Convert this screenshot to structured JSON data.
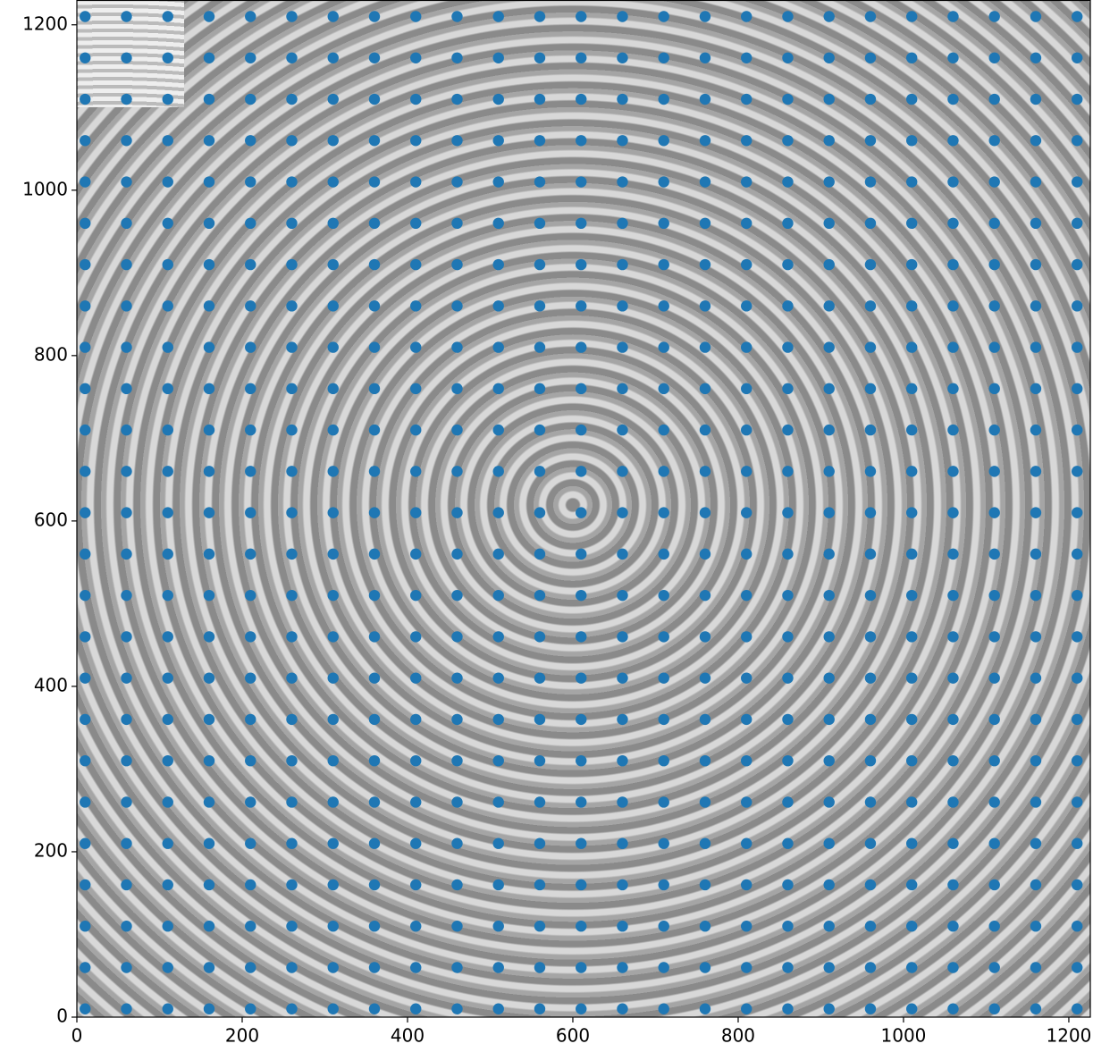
{
  "chart_data": {
    "type": "scatter",
    "color": "#1f77b4",
    "xlim": [
      0,
      1226
    ],
    "ylim": [
      0,
      1230
    ],
    "xticks": [
      0,
      200,
      400,
      600,
      800,
      1000,
      1200
    ],
    "yticks": [
      0,
      200,
      400,
      600,
      800,
      1000,
      1200
    ],
    "x": [
      10,
      60,
      110,
      160,
      210,
      260,
      310,
      360,
      410,
      460,
      510,
      560,
      610,
      660,
      710,
      760,
      810,
      860,
      910,
      960,
      1010,
      1060,
      1110,
      1160,
      1210,
      10,
      60,
      110,
      160,
      210,
      260,
      310,
      360,
      410,
      460,
      510,
      560,
      610,
      660,
      710,
      760,
      810,
      860,
      910,
      960,
      1010,
      1060,
      1110,
      1160,
      1210,
      10,
      60,
      110,
      160,
      210,
      260,
      310,
      360,
      410,
      460,
      510,
      560,
      610,
      660,
      710,
      760,
      810,
      860,
      910,
      960,
      1010,
      1060,
      1110,
      1160,
      1210,
      10,
      60,
      110,
      160,
      210,
      260,
      310,
      360,
      410,
      460,
      510,
      560,
      610,
      660,
      710,
      760,
      810,
      860,
      910,
      960,
      1010,
      1060,
      1110,
      1160,
      1210,
      10,
      60,
      110,
      160,
      210,
      260,
      310,
      360,
      410,
      460,
      510,
      560,
      610,
      660,
      710,
      760,
      810,
      860,
      910,
      960,
      1010,
      1060,
      1110,
      1160,
      1210,
      10,
      60,
      110,
      160,
      210,
      260,
      310,
      360,
      410,
      460,
      510,
      560,
      610,
      660,
      710,
      760,
      810,
      860,
      910,
      960,
      1010,
      1060,
      1110,
      1160,
      1210,
      10,
      60,
      110,
      160,
      210,
      260,
      310,
      360,
      410,
      460,
      510,
      560,
      610,
      660,
      710,
      760,
      810,
      860,
      910,
      960,
      1010,
      1060,
      1110,
      1160,
      1210,
      10,
      60,
      110,
      160,
      210,
      260,
      310,
      360,
      410,
      460,
      510,
      560,
      610,
      660,
      710,
      760,
      810,
      860,
      910,
      960,
      1010,
      1060,
      1110,
      1160,
      1210,
      10,
      60,
      110,
      160,
      210,
      260,
      310,
      360,
      410,
      460,
      510,
      560,
      610,
      660,
      710,
      760,
      810,
      860,
      910,
      960,
      1010,
      1060,
      1110,
      1160,
      1210,
      10,
      60,
      110,
      160,
      210,
      260,
      310,
      360,
      410,
      460,
      510,
      560,
      610,
      660,
      710,
      760,
      810,
      860,
      910,
      960,
      1010,
      1060,
      1110,
      1160,
      1210,
      10,
      60,
      110,
      160,
      210,
      260,
      310,
      360,
      410,
      460,
      510,
      560,
      610,
      660,
      710,
      760,
      810,
      860,
      910,
      960,
      1010,
      1060,
      1110,
      1160,
      1210,
      10,
      60,
      110,
      160,
      210,
      260,
      310,
      360,
      410,
      460,
      510,
      560,
      610,
      660,
      710,
      760,
      810,
      860,
      910,
      960,
      1010,
      1060,
      1110,
      1160,
      1210,
      10,
      60,
      110,
      160,
      210,
      260,
      310,
      360,
      410,
      460,
      510,
      560,
      610,
      660,
      710,
      760,
      810,
      860,
      910,
      960,
      1010,
      1060,
      1110,
      1160,
      1210,
      10,
      60,
      110,
      160,
      210,
      260,
      310,
      360,
      410,
      460,
      510,
      560,
      610,
      660,
      710,
      760,
      810,
      860,
      910,
      960,
      1010,
      1060,
      1110,
      1160,
      1210,
      10,
      60,
      110,
      160,
      210,
      260,
      310,
      360,
      410,
      460,
      510,
      560,
      610,
      660,
      710,
      760,
      810,
      860,
      910,
      960,
      1010,
      1060,
      1110,
      1160,
      1210,
      10,
      60,
      110,
      160,
      210,
      260,
      310,
      360,
      410,
      460,
      510,
      560,
      610,
      660,
      710,
      760,
      810,
      860,
      910,
      960,
      1010,
      1060,
      1110,
      1160,
      1210,
      10,
      60,
      110,
      160,
      210,
      260,
      310,
      360,
      410,
      460,
      510,
      560,
      610,
      660,
      710,
      760,
      810,
      860,
      910,
      960,
      1010,
      1060,
      1110,
      1160,
      1210,
      10,
      60,
      110,
      160,
      210,
      260,
      310,
      360,
      410,
      460,
      510,
      560,
      610,
      660,
      710,
      760,
      810,
      860,
      910,
      960,
      1010,
      1060,
      1110,
      1160,
      1210,
      10,
      60,
      110,
      160,
      210,
      260,
      310,
      360,
      410,
      460,
      510,
      560,
      610,
      660,
      710,
      760,
      810,
      860,
      910,
      960,
      1010,
      1060,
      1110,
      1160,
      1210,
      10,
      60,
      110,
      160,
      210,
      260,
      310,
      360,
      410,
      460,
      510,
      560,
      610,
      660,
      710,
      760,
      810,
      860,
      910,
      960,
      1010,
      1060,
      1110,
      1160,
      1210,
      10,
      60,
      110,
      160,
      210,
      260,
      310,
      360,
      410,
      460,
      510,
      560,
      610,
      660,
      710,
      760,
      810,
      860,
      910,
      960,
      1010,
      1060,
      1110,
      1160,
      1210,
      10,
      60,
      110,
      160,
      210,
      260,
      310,
      360,
      410,
      460,
      510,
      560,
      610,
      660,
      710,
      760,
      810,
      860,
      910,
      960,
      1010,
      1060,
      1110,
      1160,
      1210,
      10,
      60,
      110,
      160,
      210,
      260,
      310,
      360,
      410,
      460,
      510,
      560,
      610,
      660,
      710,
      760,
      810,
      860,
      910,
      960,
      1010,
      1060,
      1110,
      1160,
      1210,
      10,
      60,
      110,
      160,
      210,
      260,
      310,
      360,
      410,
      460,
      510,
      560,
      610,
      660,
      710,
      760,
      810,
      860,
      910,
      960,
      1010,
      1060,
      1110,
      1160,
      1210,
      10,
      60,
      110,
      160,
      210,
      260,
      310,
      360,
      410,
      460,
      510,
      560,
      610,
      660,
      710,
      760,
      810,
      860,
      910,
      960,
      1010,
      1060,
      1110,
      1160,
      1210
    ],
    "values": [
      10,
      10,
      10,
      10,
      10,
      10,
      10,
      10,
      10,
      10,
      10,
      10,
      10,
      10,
      10,
      10,
      10,
      10,
      10,
      10,
      10,
      10,
      10,
      10,
      10,
      60,
      60,
      60,
      60,
      60,
      60,
      60,
      60,
      60,
      60,
      60,
      60,
      60,
      60,
      60,
      60,
      60,
      60,
      60,
      60,
      60,
      60,
      60,
      60,
      60,
      110,
      110,
      110,
      110,
      110,
      110,
      110,
      110,
      110,
      110,
      110,
      110,
      110,
      110,
      110,
      110,
      110,
      110,
      110,
      110,
      110,
      110,
      110,
      110,
      110,
      160,
      160,
      160,
      160,
      160,
      160,
      160,
      160,
      160,
      160,
      160,
      160,
      160,
      160,
      160,
      160,
      160,
      160,
      160,
      160,
      160,
      160,
      160,
      160,
      160,
      210,
      210,
      210,
      210,
      210,
      210,
      210,
      210,
      210,
      210,
      210,
      210,
      210,
      210,
      210,
      210,
      210,
      210,
      210,
      210,
      210,
      210,
      210,
      210,
      210,
      260,
      260,
      260,
      260,
      260,
      260,
      260,
      260,
      260,
      260,
      260,
      260,
      260,
      260,
      260,
      260,
      260,
      260,
      260,
      260,
      260,
      260,
      260,
      260,
      260,
      310,
      310,
      310,
      310,
      310,
      310,
      310,
      310,
      310,
      310,
      310,
      310,
      310,
      310,
      310,
      310,
      310,
      310,
      310,
      310,
      310,
      310,
      310,
      310,
      310,
      360,
      360,
      360,
      360,
      360,
      360,
      360,
      360,
      360,
      360,
      360,
      360,
      360,
      360,
      360,
      360,
      360,
      360,
      360,
      360,
      360,
      360,
      360,
      360,
      360,
      410,
      410,
      410,
      410,
      410,
      410,
      410,
      410,
      410,
      410,
      410,
      410,
      410,
      410,
      410,
      410,
      410,
      410,
      410,
      410,
      410,
      410,
      410,
      410,
      410,
      460,
      460,
      460,
      460,
      460,
      460,
      460,
      460,
      460,
      460,
      460,
      460,
      460,
      460,
      460,
      460,
      460,
      460,
      460,
      460,
      460,
      460,
      460,
      460,
      460,
      510,
      510,
      510,
      510,
      510,
      510,
      510,
      510,
      510,
      510,
      510,
      510,
      510,
      510,
      510,
      510,
      510,
      510,
      510,
      510,
      510,
      510,
      510,
      510,
      510,
      560,
      560,
      560,
      560,
      560,
      560,
      560,
      560,
      560,
      560,
      560,
      560,
      560,
      560,
      560,
      560,
      560,
      560,
      560,
      560,
      560,
      560,
      560,
      560,
      560,
      610,
      610,
      610,
      610,
      610,
      610,
      610,
      610,
      610,
      610,
      610,
      610,
      610,
      610,
      610,
      610,
      610,
      610,
      610,
      610,
      610,
      610,
      610,
      610,
      610,
      660,
      660,
      660,
      660,
      660,
      660,
      660,
      660,
      660,
      660,
      660,
      660,
      660,
      660,
      660,
      660,
      660,
      660,
      660,
      660,
      660,
      660,
      660,
      660,
      660,
      710,
      710,
      710,
      710,
      710,
      710,
      710,
      710,
      710,
      710,
      710,
      710,
      710,
      710,
      710,
      710,
      710,
      710,
      710,
      710,
      710,
      710,
      710,
      710,
      710,
      760,
      760,
      760,
      760,
      760,
      760,
      760,
      760,
      760,
      760,
      760,
      760,
      760,
      760,
      760,
      760,
      760,
      760,
      760,
      760,
      760,
      760,
      760,
      760,
      760,
      810,
      810,
      810,
      810,
      810,
      810,
      810,
      810,
      810,
      810,
      810,
      810,
      810,
      810,
      810,
      810,
      810,
      810,
      810,
      810,
      810,
      810,
      810,
      810,
      810,
      860,
      860,
      860,
      860,
      860,
      860,
      860,
      860,
      860,
      860,
      860,
      860,
      860,
      860,
      860,
      860,
      860,
      860,
      860,
      860,
      860,
      860,
      860,
      860,
      860,
      910,
      910,
      910,
      910,
      910,
      910,
      910,
      910,
      910,
      910,
      910,
      910,
      910,
      910,
      910,
      910,
      910,
      910,
      910,
      910,
      910,
      910,
      910,
      910,
      910,
      960,
      960,
      960,
      960,
      960,
      960,
      960,
      960,
      960,
      960,
      960,
      960,
      960,
      960,
      960,
      960,
      960,
      960,
      960,
      960,
      960,
      960,
      960,
      960,
      960,
      1010,
      1010,
      1010,
      1010,
      1010,
      1010,
      1010,
      1010,
      1010,
      1010,
      1010,
      1010,
      1010,
      1010,
      1010,
      1010,
      1010,
      1010,
      1010,
      1010,
      1010,
      1010,
      1010,
      1010,
      1010,
      1060,
      1060,
      1060,
      1060,
      1060,
      1060,
      1060,
      1060,
      1060,
      1060,
      1060,
      1060,
      1060,
      1060,
      1060,
      1060,
      1060,
      1060,
      1060,
      1060,
      1060,
      1060,
      1060,
      1060,
      1060,
      1110,
      1110,
      1110,
      1110,
      1110,
      1110,
      1110,
      1110,
      1110,
      1110,
      1110,
      1110,
      1110,
      1110,
      1110,
      1110,
      1110,
      1110,
      1110,
      1110,
      1110,
      1110,
      1110,
      1110,
      1110,
      1160,
      1160,
      1160,
      1160,
      1160,
      1160,
      1160,
      1160,
      1160,
      1160,
      1160,
      1160,
      1160,
      1160,
      1160,
      1160,
      1160,
      1160,
      1160,
      1160,
      1160,
      1160,
      1160,
      1160,
      1160,
      1210,
      1210,
      1210,
      1210,
      1210,
      1210,
      1210,
      1210,
      1210,
      1210,
      1210,
      1210,
      1210,
      1210,
      1210,
      1210,
      1210,
      1210,
      1210,
      1210,
      1210,
      1210,
      1210,
      1210,
      1210
    ]
  }
}
